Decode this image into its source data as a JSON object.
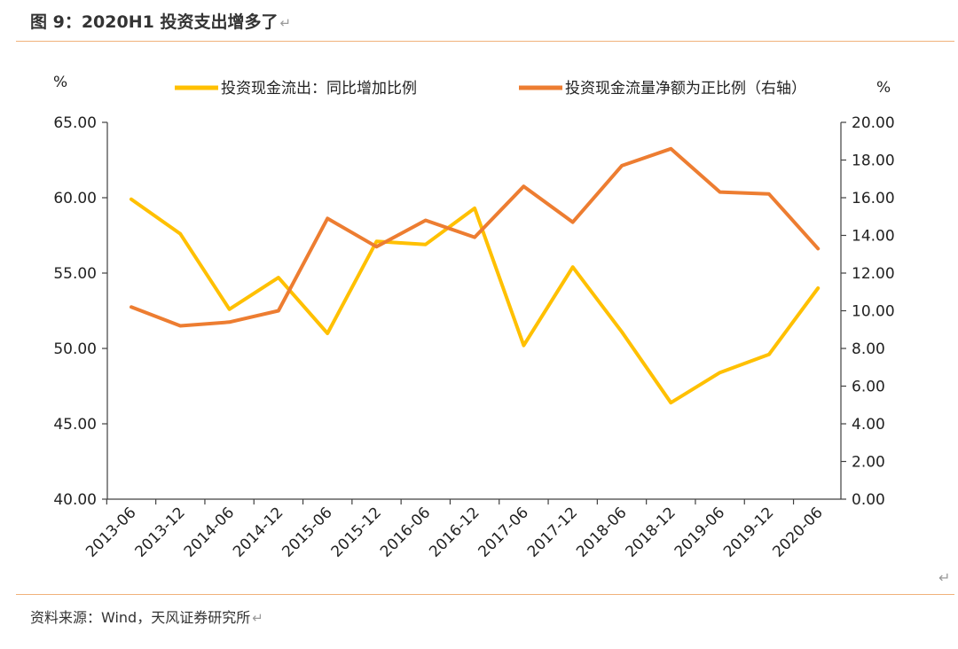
{
  "figure": {
    "title": "图 9：2020H1 投资支出增多了",
    "return_mark": "↵",
    "source": "资料来源：Wind，天风证券研究所"
  },
  "chart_data": {
    "type": "line",
    "categories": [
      "2013-06",
      "2013-12",
      "2014-06",
      "2014-12",
      "2015-06",
      "2015-12",
      "2016-06",
      "2016-12",
      "2017-06",
      "2017-12",
      "2018-06",
      "2018-12",
      "2019-06",
      "2019-12",
      "2020-06"
    ],
    "left_unit": "%",
    "right_unit": "%",
    "left_axis": {
      "ylim": [
        40,
        65
      ],
      "ticks": [
        "40.00",
        "45.00",
        "50.00",
        "55.00",
        "60.00",
        "65.00"
      ]
    },
    "right_axis": {
      "ylim": [
        0,
        20
      ],
      "ticks": [
        "0.00",
        "2.00",
        "4.00",
        "6.00",
        "8.00",
        "10.00",
        "12.00",
        "14.00",
        "16.00",
        "18.00",
        "20.00"
      ]
    },
    "legend_position": "top",
    "grid": false,
    "series": [
      {
        "name": "投资现金流出：同比增加比例",
        "axis": "left",
        "color": "#FFC000",
        "values": [
          59.9,
          57.6,
          52.6,
          54.7,
          51.0,
          57.1,
          56.9,
          59.3,
          50.2,
          55.4,
          51.1,
          46.4,
          48.4,
          49.6,
          54.0
        ]
      },
      {
        "name": "投资现金流量净额为正比例（右轴）",
        "axis": "right",
        "color": "#ED7D31",
        "values": [
          10.2,
          9.2,
          9.4,
          10.0,
          14.9,
          13.4,
          14.8,
          13.9,
          16.6,
          14.7,
          17.7,
          18.6,
          16.3,
          16.2,
          13.3
        ]
      }
    ]
  }
}
